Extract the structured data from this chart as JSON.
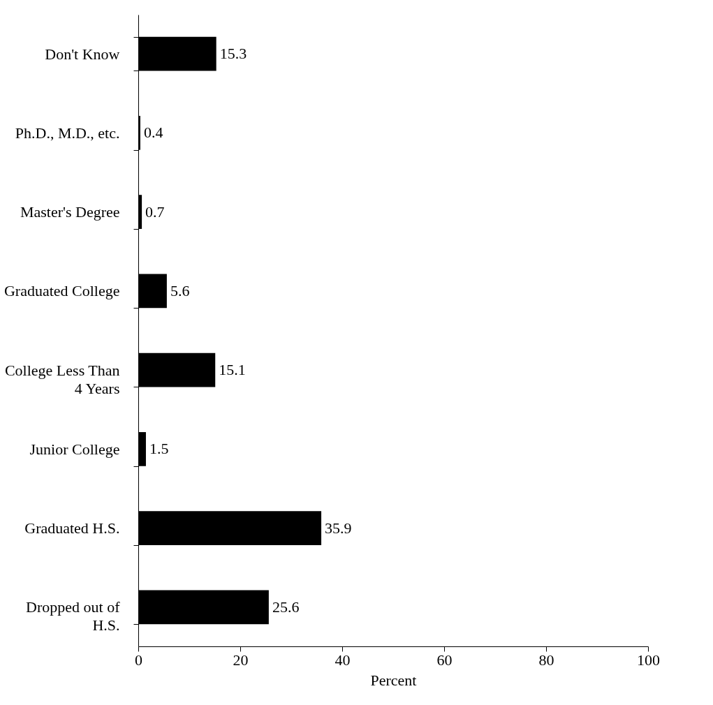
{
  "chart_data": {
    "type": "bar",
    "orientation": "horizontal",
    "categories": [
      "Don't Know",
      "Ph.D., M.D., etc.",
      "Master's Degree",
      "Graduated College",
      "College Less Than 4 Years",
      "Junior College",
      "Graduated H.S.",
      "Dropped out of H.S."
    ],
    "values": [
      15.3,
      0.4,
      0.7,
      5.6,
      15.1,
      1.5,
      35.9,
      25.6
    ],
    "color": "#000000",
    "xlabel": "Percent",
    "xlim": [
      0,
      100
    ],
    "xticks": [
      0,
      20,
      40,
      60,
      80,
      100
    ],
    "grid": false,
    "data_labels": true
  }
}
